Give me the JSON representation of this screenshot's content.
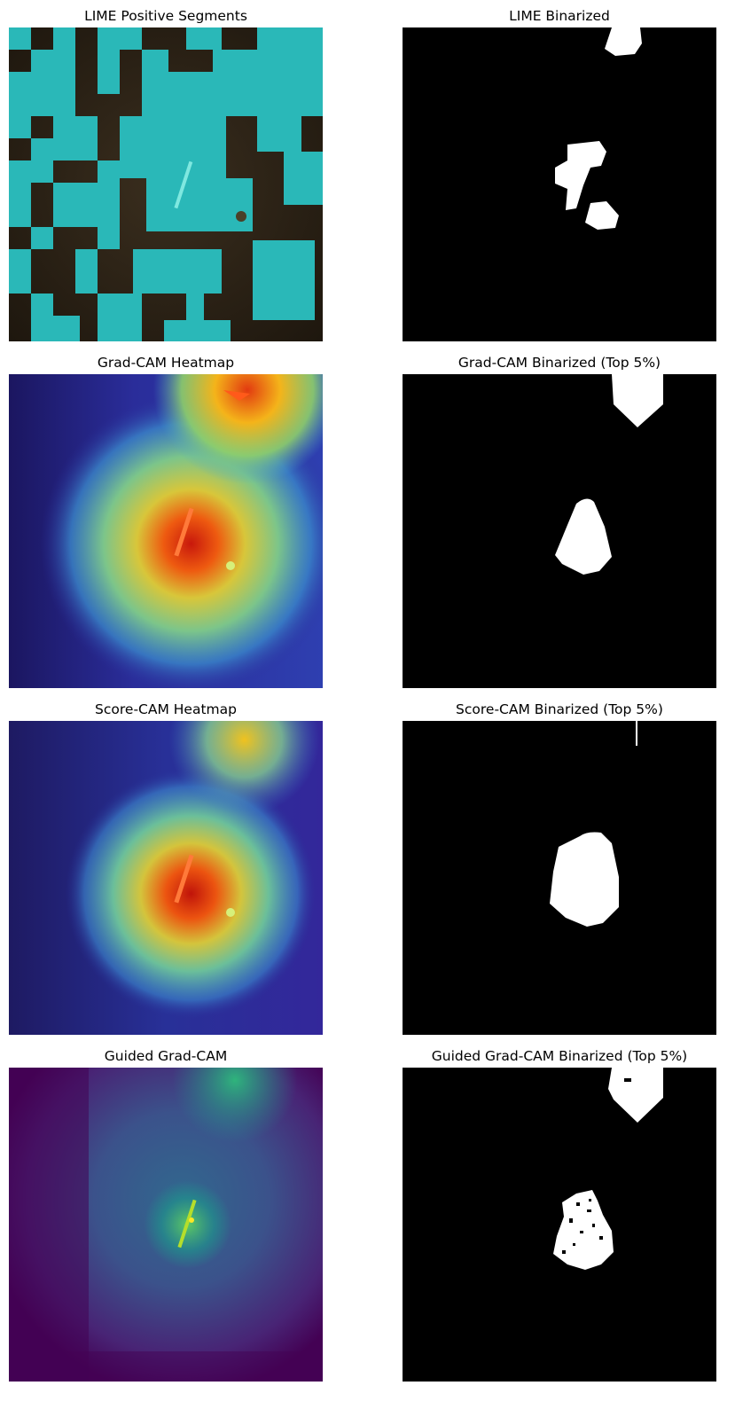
{
  "figure": {
    "panels": [
      {
        "title": "LIME Positive Segments",
        "kind": "lime-overlay"
      },
      {
        "title": "LIME Binarized",
        "kind": "binary-mask"
      },
      {
        "title": "Grad-CAM Heatmap",
        "kind": "jet-heatmap"
      },
      {
        "title": "Grad-CAM Binarized (Top 5%)",
        "kind": "binary-mask"
      },
      {
        "title": "Score-CAM Heatmap",
        "kind": "jet-heatmap"
      },
      {
        "title": "Score-CAM Binarized (Top 5%)",
        "kind": "binary-mask"
      },
      {
        "title": "Guided Grad-CAM",
        "kind": "viridis-map"
      },
      {
        "title": "Guided Grad-CAM Binarized (Top 5%)",
        "kind": "binary-mask"
      }
    ],
    "colors": {
      "lime_segment": "#2ab8b8",
      "sonar_dark": "#2a2014",
      "mask_fg": "#ffffff",
      "mask_bg": "#000000",
      "viridis_low": "#440154",
      "viridis_mid": "#3b528b",
      "viridis_high": "#5ec962"
    }
  }
}
